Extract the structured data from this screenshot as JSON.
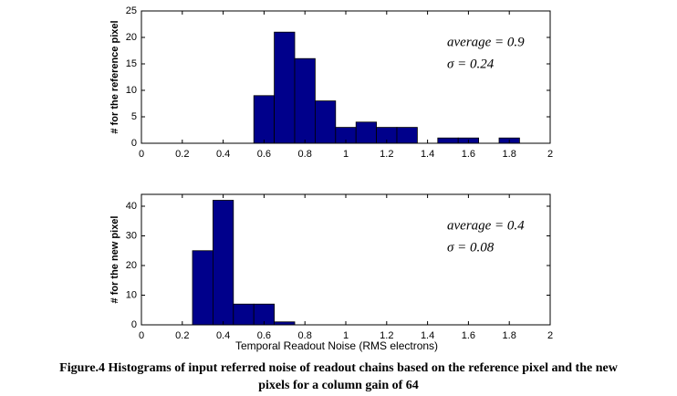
{
  "chart_data": [
    {
      "type": "histogram",
      "ylabel": "# for the reference pixel",
      "bins": [
        0.55,
        0.65,
        0.75,
        0.85,
        0.95,
        1.05,
        1.15,
        1.25,
        1.35,
        1.45,
        1.55,
        1.65,
        1.75,
        1.85
      ],
      "counts": [
        9,
        21,
        16,
        8,
        3,
        4,
        3,
        3,
        0,
        1,
        1,
        0,
        1
      ],
      "color": "#00008b",
      "xlim": [
        0,
        2
      ],
      "xticks": [
        0,
        0.2,
        0.4,
        0.6,
        0.8,
        1,
        1.2,
        1.4,
        1.6,
        1.8,
        2
      ],
      "ylim": [
        0,
        25
      ],
      "yticks": [
        0,
        5,
        10,
        15,
        20,
        25
      ],
      "annotations": [
        "average = 0.9",
        "σ = 0.24"
      ]
    },
    {
      "type": "histogram",
      "ylabel": "# for the new pixel",
      "xlabel": "Temporal Readout Noise (RMS electrons)",
      "bins": [
        0.25,
        0.35,
        0.45,
        0.55,
        0.65,
        0.75
      ],
      "counts": [
        25,
        42,
        7,
        7,
        1
      ],
      "color": "#00008b",
      "xlim": [
        0,
        2
      ],
      "xticks": [
        0,
        0.2,
        0.4,
        0.6,
        0.8,
        1,
        1.2,
        1.4,
        1.6,
        1.8,
        2
      ],
      "ylim": [
        0,
        44
      ],
      "yticks": [
        0,
        10,
        20,
        30,
        40
      ],
      "annotations": [
        "average = 0.4",
        "σ = 0.08"
      ]
    }
  ],
  "caption": [
    "Figure.4 Histograms of input referred noise of readout chains based on the reference pixel and the new",
    "pixels for a column gain of 64"
  ]
}
